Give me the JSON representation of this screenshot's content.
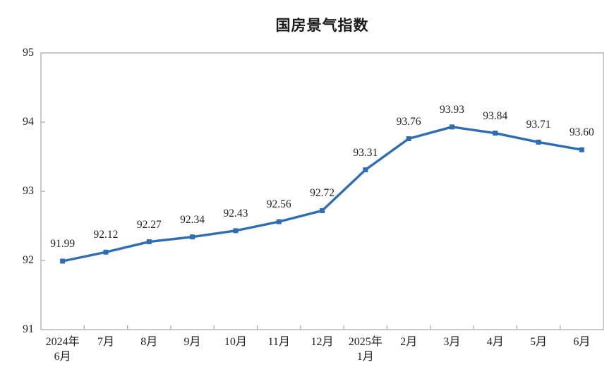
{
  "chart_data": {
    "type": "line",
    "title": "国房景气指数",
    "categories": [
      "2024年\n6月",
      "7月",
      "8月",
      "9月",
      "10月",
      "11月",
      "12月",
      "2025年\n1月",
      "2月",
      "3月",
      "4月",
      "5月",
      "6月"
    ],
    "values": [
      91.99,
      92.12,
      92.27,
      92.34,
      92.43,
      92.56,
      92.72,
      93.31,
      93.76,
      93.93,
      93.84,
      93.71,
      93.6
    ],
    "data_labels": [
      "91.99",
      "92.12",
      "92.27",
      "92.34",
      "92.43",
      "92.56",
      "92.72",
      "93.31",
      "93.76",
      "93.93",
      "93.84",
      "93.71",
      "93.60"
    ],
    "ylim": [
      91,
      95
    ],
    "yticks": [
      91,
      92,
      93,
      94,
      95
    ],
    "grid": false,
    "legend_position": "none",
    "line_color": "#2e6db4",
    "marker_shape": "square",
    "axis_color": "#a6a6a6",
    "label_color": "#1f1f1f"
  }
}
